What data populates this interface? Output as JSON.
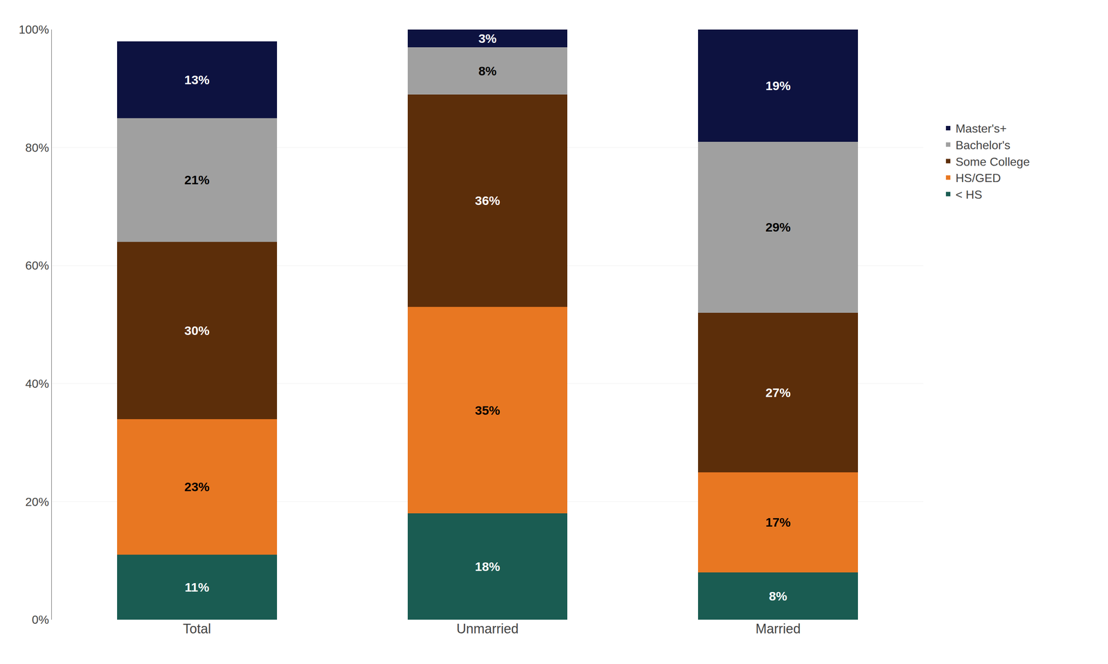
{
  "chart_data": {
    "type": "bar",
    "stacked": true,
    "data_labels": true,
    "grid": true,
    "legend": "right",
    "categories": [
      "Total",
      "Unmarried",
      "Married"
    ],
    "series": [
      {
        "name": "< HS",
        "color": "#1a5c52",
        "values": [
          11,
          18,
          8
        ],
        "value_labels": [
          "11%",
          "18%",
          "8%"
        ]
      },
      {
        "name": "HS/GED",
        "color": "#e87722",
        "values": [
          23,
          35,
          17
        ],
        "value_labels": [
          "23%",
          "35%",
          "17%"
        ]
      },
      {
        "name": "Some College",
        "color": "#5c2e0a",
        "values": [
          30,
          36,
          27
        ],
        "value_labels": [
          "30%",
          "36%",
          "27%"
        ]
      },
      {
        "name": "Bachelor's",
        "color": "#a0a0a0",
        "values": [
          21,
          8,
          29
        ],
        "value_labels": [
          "21%",
          "8%",
          "29%"
        ]
      },
      {
        "name": "Master's+",
        "color": "#0d1240",
        "values": [
          13,
          3,
          19
        ],
        "value_labels": [
          "13%",
          "3%",
          "19%"
        ]
      }
    ],
    "ylim": [
      0,
      100
    ],
    "yticks": [
      {
        "value": 0,
        "label": "0%"
      },
      {
        "value": 20,
        "label": "20%"
      },
      {
        "value": 40,
        "label": "40%"
      },
      {
        "value": 60,
        "label": "60%"
      },
      {
        "value": 80,
        "label": "80%"
      },
      {
        "value": 100,
        "label": "100%"
      }
    ]
  }
}
